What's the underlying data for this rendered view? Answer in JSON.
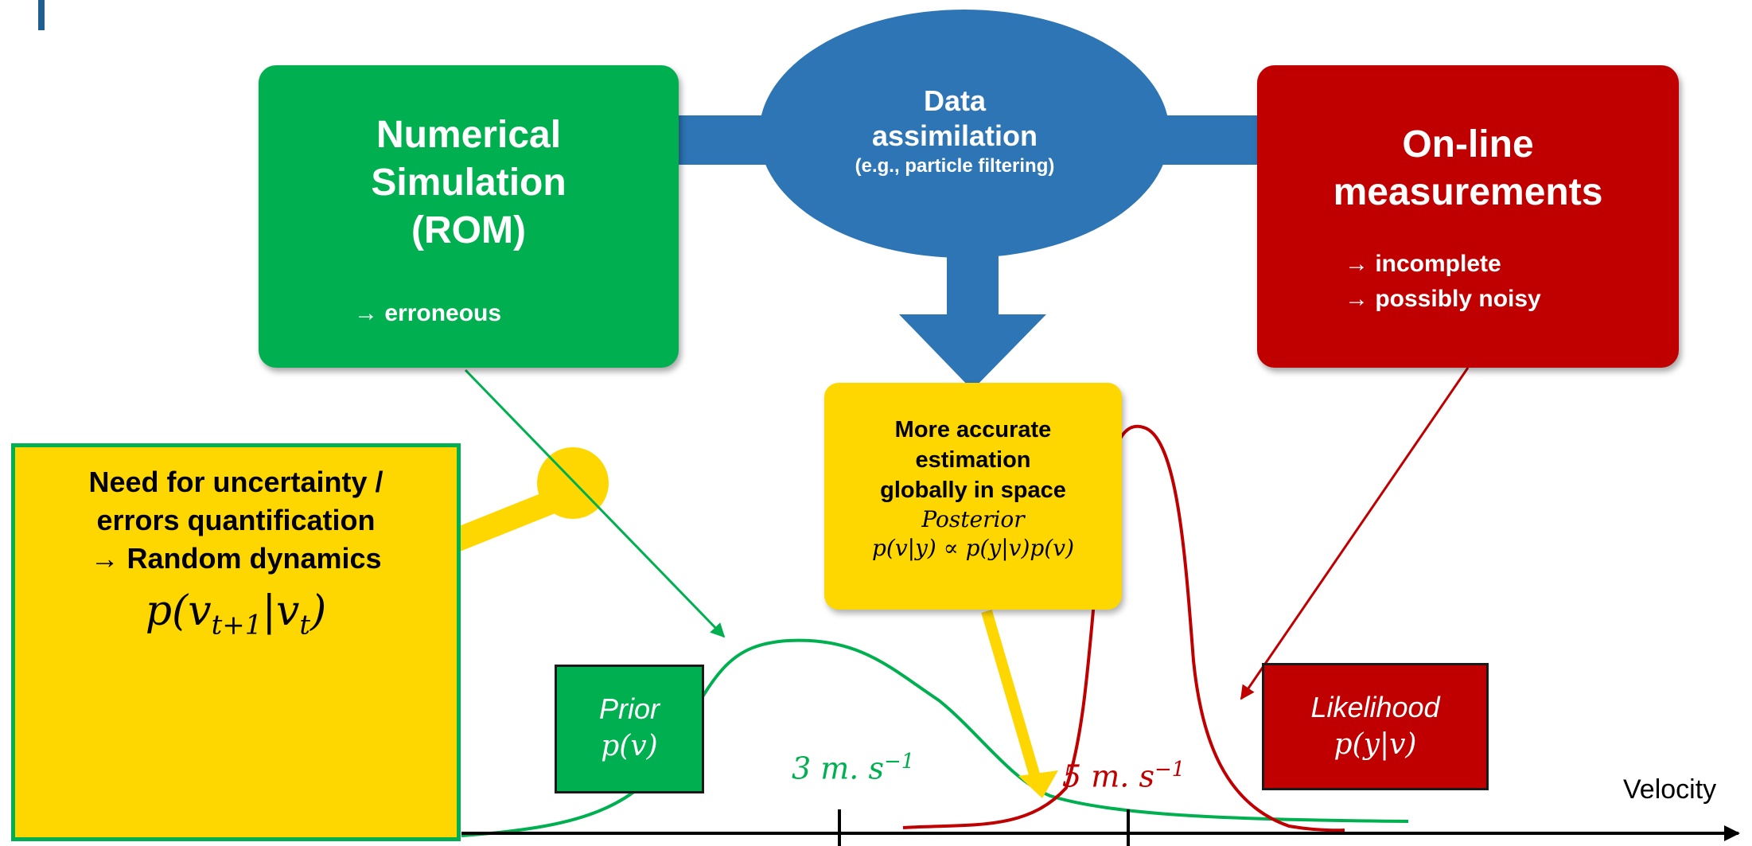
{
  "simulation_box": {
    "title_lines": [
      "Numerical",
      "Simulation",
      "(ROM)"
    ],
    "note": "→ erroneous",
    "color": "#00b050"
  },
  "assimilation_ellipse": {
    "title_lines": [
      "Data",
      "assimilation"
    ],
    "subtitle": "(e.g., particle filtering)",
    "color": "#2e75b6"
  },
  "measurement_box": {
    "title_lines": [
      "On-line",
      "measurements"
    ],
    "notes": [
      "→ incomplete",
      "→ possibly noisy"
    ],
    "color": "#c00000"
  },
  "estimation_box": {
    "lines": [
      "More accurate",
      "estimation",
      "globally in space"
    ],
    "posterior_label": "Posterior",
    "formula": "p(v|y) ∝ p(y|v)p(v)",
    "color": "#ffd700"
  },
  "uncertainty_box": {
    "lines": [
      "Need for uncertainty /",
      "errors quantification",
      "→ Random dynamics"
    ],
    "formula": "p(v_{t+1}|v_t)",
    "formula_main": "p(v",
    "formula_sub": "t+1",
    "formula_mid": "|v",
    "formula_sub2": "t",
    "formula_end": ")"
  },
  "prior_box": {
    "label": "Prior",
    "formula": "p(v)"
  },
  "likelihood_box": {
    "label": "Likelihood",
    "formula": "p(y|v)"
  },
  "speed_labels": {
    "prior_speed": "3 m. s",
    "prior_exp": "−1",
    "likelihood_speed": "5 m. s",
    "likelihood_exp": "−1"
  },
  "axis": {
    "label": "Velocity"
  },
  "colors": {
    "prior_curve": "#00b050",
    "likelihood_curve": "#c00000",
    "connector": "#2e75b6",
    "highlight": "#ffd700"
  }
}
